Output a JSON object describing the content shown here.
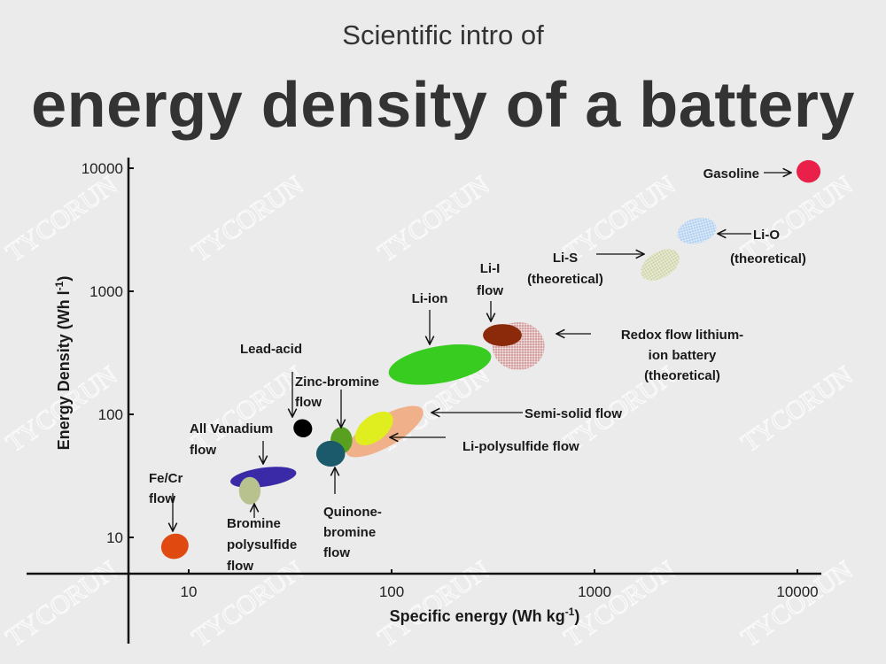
{
  "title": {
    "line1": "Scientific intro of",
    "line2": "energy density of a battery"
  },
  "watermark": "TYCORUN",
  "chart_data": {
    "type": "scatter",
    "x_scale": "log",
    "y_scale": "log",
    "xlabel": "Specific energy (Wh kg",
    "xlabel_sup": "-1",
    "xlabel_end": ")",
    "ylabel": "Energy Density (Wh l",
    "ylabel_sup": "-1",
    "ylabel_end": ")",
    "xlim": [
      3,
      13500
    ],
    "ylim": [
      5,
      13000
    ],
    "x_ticks": [
      "10",
      "100",
      "1000",
      "10000"
    ],
    "y_ticks": [
      "10",
      "100",
      "1000",
      "10000"
    ],
    "grid": false,
    "series": [
      {
        "name": "Fe/Cr flow",
        "label_lines": [
          "Fe/Cr",
          "flow"
        ],
        "x_range": [
          7.3,
          10
        ],
        "y_range": [
          6.7,
          10.7
        ],
        "color": "#e04a10",
        "hatched": false
      },
      {
        "name": "All Vanadium flow",
        "label_lines": [
          "All Vanadium",
          "flow"
        ],
        "x_range": [
          16,
          34
        ],
        "y_range": [
          25,
          38
        ],
        "color": "#3a2aa8",
        "hatched": false
      },
      {
        "name": "Bromine polysulfide flow",
        "label_lines": [
          "Bromine",
          "polysulfide",
          "flow"
        ],
        "x_range": [
          17.7,
          22.6
        ],
        "y_range": [
          18.5,
          31
        ],
        "color": "#b8c28e",
        "hatched": false
      },
      {
        "name": "Lead-acid",
        "label_lines": [
          "Lead-acid"
        ],
        "x_range": [
          31,
          43
        ],
        "y_range": [
          54,
          110
        ],
        "color": "#000000",
        "hatched": false
      },
      {
        "name": "Semi-solid flow",
        "label_lines": [
          "Semi-solid flow"
        ],
        "x_range": [
          56,
          152
        ],
        "y_range": [
          41,
          128
        ],
        "color": "#f0b08a",
        "hatched": false
      },
      {
        "name": "Li-polysulfide flow",
        "label_lines": [
          "Li-polysulfide flow"
        ],
        "x_range": [
          61,
          110
        ],
        "y_range": [
          50,
          118
        ],
        "color": "#e0ee20",
        "hatched": false
      },
      {
        "name": "Zinc-bromine flow",
        "label_lines": [
          "Zinc-bromine",
          "flow"
        ],
        "x_range": [
          50,
          64
        ],
        "y_range": [
          48,
          79
        ],
        "color": "#5aa020",
        "hatched": false
      },
      {
        "name": "Quinone-bromine flow",
        "label_lines": [
          "Quinone-",
          "bromine",
          "flow"
        ],
        "x_range": [
          42.5,
          59
        ],
        "y_range": [
          37.6,
          61
        ],
        "color": "#1a5a6a",
        "hatched": false
      },
      {
        "name": "Redox flow lithium-ion battery (theoretical)",
        "label_lines": [
          "Redox flow lithium-",
          "ion battery",
          "(theoretical)"
        ],
        "x_range": [
          314,
          567
        ],
        "y_range": [
          229,
          560
        ],
        "color": "#d4a0a0",
        "hatched": true
      },
      {
        "name": "Li-ion",
        "label_lines": [
          "Li-ion"
        ],
        "x_range": [
          96,
          312
        ],
        "y_range": [
          165,
          390
        ],
        "color": "#38cc20",
        "hatched": false
      },
      {
        "name": "Li-I flow",
        "label_lines": [
          "Li-I",
          "flow"
        ],
        "x_range": [
          282,
          438
        ],
        "y_range": [
          358,
          541
        ],
        "color": "#8b2a0a",
        "hatched": false
      },
      {
        "name": "Li-S (theoretical)",
        "label_lines": [
          "Li-S",
          "(theoretical)"
        ],
        "x_range": [
          1587,
          2800
        ],
        "y_range": [
          1130,
          2380
        ],
        "color": "#cfd4a8",
        "hatched": true
      },
      {
        "name": "Li-O (theoretical)",
        "label_lines": [
          "Li-O",
          "(theoretical)"
        ],
        "x_range": [
          2550,
          4000
        ],
        "y_range": [
          2420,
          3960
        ],
        "color": "#b0cff0",
        "hatched": true
      },
      {
        "name": "Gasoline",
        "label_lines": [
          "Gasoline"
        ],
        "x_range": [
          9900,
          13000
        ],
        "y_range": [
          7630,
          11620
        ],
        "color": "#e8204a",
        "hatched": false
      }
    ]
  }
}
